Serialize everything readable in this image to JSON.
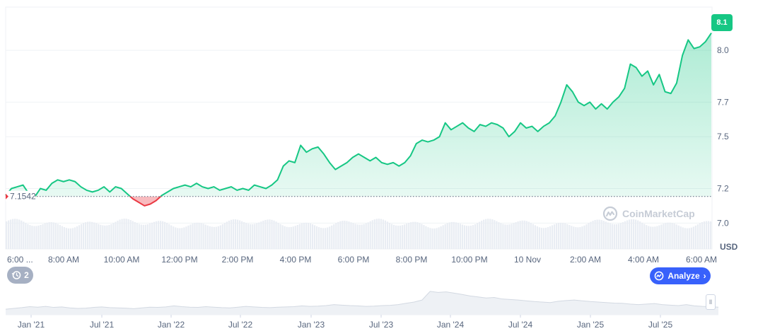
{
  "chart_data": {
    "type": "area",
    "xlabel": "",
    "ylabel": "USD",
    "ylim": [
      6.85,
      8.25
    ],
    "y_ticks": [
      7.0,
      7.2,
      7.5,
      7.7,
      8.0
    ],
    "y_tick_labels": [
      "7.0",
      "7.2",
      "7.5",
      "7.7",
      "8.0"
    ],
    "x_tick_labels": [
      "6:00 ...",
      "8:00 AM",
      "10:00 AM",
      "12:00 PM",
      "2:00 PM",
      "4:00 PM",
      "6:00 PM",
      "8:00 PM",
      "10:00 PM",
      "10 Nov",
      "2:00 AM",
      "4:00 AM",
      "6:00 AM"
    ],
    "baseline_value": 7.1542,
    "baseline_label": "7.1542",
    "current_value_label": "8.1",
    "series": [
      {
        "values": [
          7.16,
          7.2,
          7.21,
          7.22,
          7.17,
          7.15,
          7.2,
          7.19,
          7.23,
          7.25,
          7.24,
          7.25,
          7.24,
          7.21,
          7.19,
          7.18,
          7.19,
          7.21,
          7.18,
          7.21,
          7.2,
          7.17,
          7.14,
          7.12,
          7.1,
          7.11,
          7.13,
          7.16,
          7.18,
          7.2,
          7.21,
          7.22,
          7.21,
          7.23,
          7.21,
          7.2,
          7.21,
          7.19,
          7.2,
          7.21,
          7.19,
          7.2,
          7.19,
          7.22,
          7.21,
          7.2,
          7.22,
          7.25,
          7.33,
          7.36,
          7.35,
          7.45,
          7.41,
          7.43,
          7.44,
          7.4,
          7.35,
          7.31,
          7.33,
          7.35,
          7.38,
          7.4,
          7.38,
          7.36,
          7.38,
          7.35,
          7.34,
          7.35,
          7.33,
          7.35,
          7.39,
          7.46,
          7.48,
          7.47,
          7.48,
          7.5,
          7.58,
          7.54,
          7.56,
          7.58,
          7.55,
          7.53,
          7.57,
          7.56,
          7.58,
          7.57,
          7.55,
          7.5,
          7.53,
          7.58,
          7.55,
          7.56,
          7.53,
          7.56,
          7.58,
          7.62,
          7.7,
          7.8,
          7.76,
          7.7,
          7.68,
          7.7,
          7.66,
          7.69,
          7.66,
          7.7,
          7.73,
          7.78,
          7.92,
          7.9,
          7.85,
          7.88,
          7.8,
          7.86,
          7.76,
          7.75,
          7.81,
          7.97,
          8.06,
          8.01,
          8.02,
          8.05,
          8.1
        ]
      }
    ],
    "overview_x_labels": [
      "Jan '21",
      "Jul '21",
      "Jan '22",
      "Jul '22",
      "Jan '23",
      "Jul '23",
      "Jan '24",
      "Jul '24",
      "Jan '25",
      "Jul '25"
    ],
    "overview_values": [
      0.22,
      0.25,
      0.28,
      0.32,
      0.3,
      0.33,
      0.29,
      0.31,
      0.27,
      0.25,
      0.26,
      0.29,
      0.31,
      0.28,
      0.27,
      0.26,
      0.24,
      0.27,
      0.3,
      0.29,
      0.31,
      0.35,
      0.32,
      0.3,
      0.29,
      0.32,
      0.3,
      0.28,
      0.27,
      0.3,
      0.33,
      0.31,
      0.29,
      0.28,
      0.3,
      0.31,
      0.32,
      0.35,
      0.33,
      0.34,
      0.36,
      0.4,
      0.38,
      0.36,
      0.35,
      0.33,
      0.34,
      0.36,
      0.37,
      0.4,
      0.45,
      0.5,
      0.58,
      0.92,
      0.88,
      0.9,
      0.85,
      0.8,
      0.74,
      0.7,
      0.66,
      0.68,
      0.62,
      0.6,
      0.58,
      0.55,
      0.52,
      0.5,
      0.48,
      0.53,
      0.56,
      0.58,
      0.55,
      0.52,
      0.5,
      0.48,
      0.46,
      0.45,
      0.42,
      0.4,
      0.42,
      0.44,
      0.4,
      0.38,
      0.36,
      0.4,
      0.35,
      0.33,
      0.32,
      0.3
    ],
    "grid": true,
    "legend": "none"
  },
  "ui": {
    "usd_label": "USD",
    "watermark_text": "CoinMarketCap",
    "analyze_label": "Analyze",
    "analyze_icon": "analyze-icon",
    "history_count": "2",
    "history_icon": "history-icon",
    "colors": {
      "up": "#16c784",
      "down": "#ea3943",
      "analyze": "#3861fb",
      "grid": "#eff2f5",
      "axis_text": "#58667e"
    }
  }
}
